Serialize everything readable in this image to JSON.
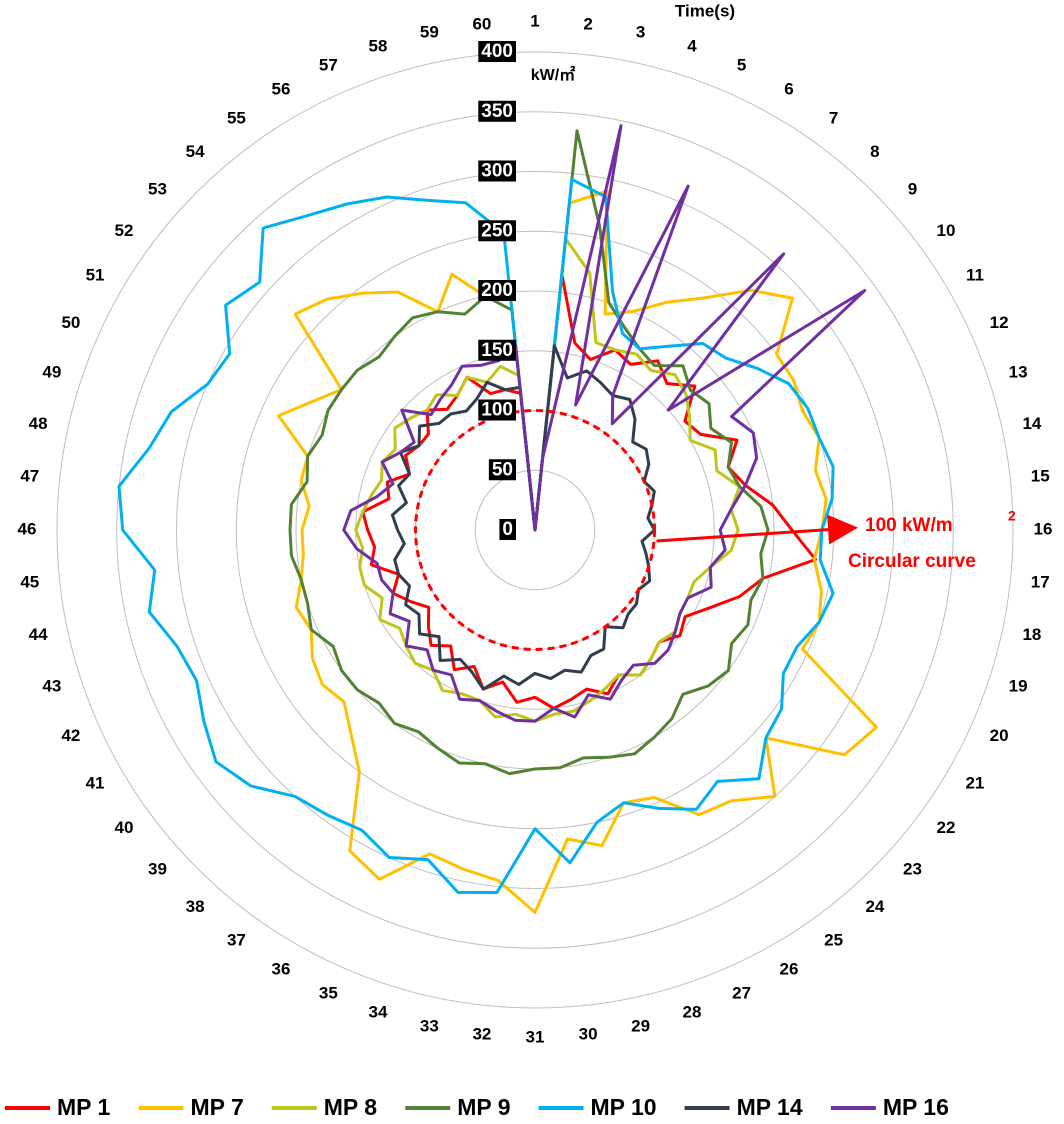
{
  "chart_data": {
    "type": "radar",
    "x_label": "Time(s)",
    "y_label": "kW/㎡",
    "categories": [
      "1",
      "2",
      "3",
      "4",
      "5",
      "6",
      "7",
      "8",
      "9",
      "10",
      "11",
      "12",
      "13",
      "14",
      "15",
      "16",
      "17",
      "18",
      "19",
      "20",
      "21",
      "22",
      "23",
      "24",
      "25",
      "26",
      "27",
      "28",
      "29",
      "30",
      "31",
      "32",
      "33",
      "34",
      "35",
      "36",
      "37",
      "38",
      "39",
      "40",
      "41",
      "42",
      "43",
      "44",
      "45",
      "46",
      "47",
      "48",
      "49",
      "50",
      "51",
      "52",
      "53",
      "54",
      "55",
      "56",
      "57",
      "58",
      "59",
      "60"
    ],
    "ylim": [
      0,
      400
    ],
    "yticks": [
      0,
      50,
      100,
      150,
      200,
      250,
      300,
      350,
      400
    ],
    "grid": true,
    "reference": {
      "value": 100,
      "label": "100 kW/m",
      "label_sup": "2",
      "note": "Circular curve",
      "color": "#ff0000"
    },
    "series": [
      {
        "name": "MP 1",
        "color": "#ff0000",
        "values": [
          0,
          215,
          160,
          150,
          165,
          160,
          175,
          165,
          180,
          155,
          160,
          185,
          170,
          180,
          200,
          215,
          236,
          195,
          180,
          160,
          145,
          150,
          140,
          145,
          150,
          140,
          150,
          140,
          145,
          150,
          140,
          145,
          130,
          140,
          125,
          135,
          120,
          130,
          120,
          110,
          120,
          130,
          120,
          140,
          135,
          140,
          145,
          125,
          130,
          115,
          125,
          120,
          120,
          135,
          125,
          130,
          140,
          120,
          120,
          115
        ]
      },
      {
        "name": "MP 7",
        "color": "#ffc000",
        "values": [
          0,
          275,
          290,
          190,
          200,
          220,
          240,
          270,
          290,
          250,
          250,
          245,
          250,
          240,
          245,
          240,
          235,
          245,
          250,
          245,
          330,
          320,
          260,
          300,
          280,
          275,
          245,
          240,
          270,
          260,
          320,
          295,
          290,
          285,
          320,
          310,
          250,
          230,
          215,
          220,
          215,
          205,
          210,
          200,
          195,
          195,
          190,
          200,
          200,
          235,
          215,
          200,
          270,
          260,
          245,
          230,
          200,
          225,
          200,
          195
        ]
      },
      {
        "name": "MP 8",
        "color": "#bfc51a",
        "values": [
          0,
          245,
          220,
          165,
          165,
          170,
          165,
          175,
          170,
          160,
          150,
          165,
          160,
          175,
          165,
          170,
          165,
          150,
          140,
          140,
          140,
          145,
          140,
          145,
          150,
          140,
          145,
          150,
          155,
          155,
          160,
          155,
          160,
          150,
          150,
          155,
          145,
          150,
          145,
          140,
          150,
          140,
          150,
          150,
          145,
          150,
          145,
          140,
          135,
          140,
          135,
          145,
          140,
          135,
          140,
          130,
          140,
          130,
          140,
          130
        ]
      },
      {
        "name": "MP 9",
        "color": "#548235",
        "values": [
          0,
          336,
          260,
          200,
          185,
          175,
          170,
          185,
          175,
          180,
          170,
          180,
          170,
          175,
          190,
          195,
          190,
          195,
          190,
          195,
          190,
          200,
          195,
          185,
          195,
          200,
          205,
          200,
          195,
          200,
          200,
          205,
          200,
          205,
          200,
          195,
          200,
          195,
          200,
          200,
          195,
          205,
          200,
          200,
          205,
          205,
          205,
          195,
          200,
          195,
          200,
          200,
          200,
          195,
          200,
          205,
          200,
          190,
          200,
          185
        ]
      },
      {
        "name": "MP 10",
        "color": "#00b0f0",
        "values": [
          0,
          295,
          285,
          210,
          180,
          175,
          190,
          210,
          215,
          230,
          245,
          250,
          250,
          255,
          250,
          240,
          240,
          255,
          250,
          240,
          240,
          255,
          260,
          280,
          260,
          270,
          255,
          240,
          250,
          280,
          250,
          305,
          310,
          290,
          300,
          290,
          295,
          300,
          320,
          330,
          320,
          310,
          315,
          330,
          320,
          345,
          350,
          330,
          320,
          300,
          295,
          320,
          310,
          340,
          325,
          315,
          305,
          290,
          280,
          250
        ]
      },
      {
        "name": "MP 14",
        "color": "#323e4f",
        "values": [
          0,
          155,
          130,
          140,
          135,
          130,
          135,
          125,
          110,
          115,
          110,
          100,
          105,
          100,
          95,
          100,
          90,
          95,
          100,
          105,
          100,
          105,
          105,
          110,
          100,
          115,
          115,
          125,
          120,
          125,
          120,
          130,
          125,
          140,
          130,
          125,
          135,
          120,
          130,
          120,
          125,
          115,
          120,
          120,
          110,
          115,
          120,
          110,
          120,
          115,
          130,
          120,
          130,
          120,
          120,
          115,
          120,
          130,
          120,
          120
        ]
      },
      {
        "name": "MP 16",
        "color": "#7030a0",
        "values": [
          0,
          60,
          346,
          110,
          315,
          130,
          110,
          311,
          150,
          341,
          190,
          200,
          195,
          180,
          165,
          155,
          160,
          150,
          155,
          140,
          140,
          145,
          150,
          150,
          140,
          145,
          155,
          145,
          160,
          150,
          160,
          160,
          155,
          150,
          155,
          140,
          145,
          135,
          145,
          130,
          140,
          130,
          135,
          135,
          150,
          160,
          155,
          135,
          125,
          140,
          130,
          125,
          150,
          130,
          135,
          140,
          150,
          145,
          145,
          155
        ]
      }
    ]
  }
}
